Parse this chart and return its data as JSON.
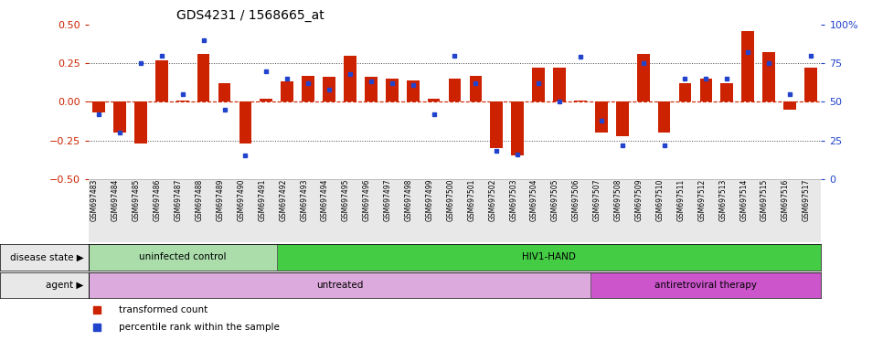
{
  "title": "GDS4231 / 1568665_at",
  "samples": [
    "GSM697483",
    "GSM697484",
    "GSM697485",
    "GSM697486",
    "GSM697487",
    "GSM697488",
    "GSM697489",
    "GSM697490",
    "GSM697491",
    "GSM697492",
    "GSM697493",
    "GSM697494",
    "GSM697495",
    "GSM697496",
    "GSM697497",
    "GSM697498",
    "GSM697499",
    "GSM697500",
    "GSM697501",
    "GSM697502",
    "GSM697503",
    "GSM697504",
    "GSM697505",
    "GSM697506",
    "GSM697507",
    "GSM697508",
    "GSM697509",
    "GSM697510",
    "GSM697511",
    "GSM697512",
    "GSM697513",
    "GSM697514",
    "GSM697515",
    "GSM697516",
    "GSM697517"
  ],
  "bar_values": [
    -0.07,
    -0.2,
    -0.27,
    0.27,
    0.01,
    0.31,
    0.12,
    -0.27,
    0.02,
    0.13,
    0.17,
    0.16,
    0.3,
    0.16,
    0.15,
    0.14,
    0.02,
    0.15,
    0.17,
    -0.3,
    -0.35,
    0.22,
    0.22,
    0.01,
    -0.2,
    -0.22,
    0.31,
    -0.2,
    0.12,
    0.15,
    0.12,
    0.46,
    0.32,
    -0.05,
    0.22
  ],
  "percentile_values": [
    42,
    30,
    75,
    80,
    55,
    90,
    45,
    15,
    70,
    65,
    62,
    58,
    68,
    63,
    62,
    61,
    42,
    80,
    62,
    18,
    16,
    62,
    50,
    79,
    38,
    22,
    75,
    22,
    65,
    65,
    65,
    82,
    75,
    55,
    80
  ],
  "ylim": [
    -0.5,
    0.5
  ],
  "yticks_left": [
    -0.5,
    -0.25,
    0,
    0.25,
    0.5
  ],
  "yticks_right": [
    0,
    25,
    50,
    75,
    100
  ],
  "yticks_right_labels": [
    "0",
    "25",
    "50",
    "75",
    "100%"
  ],
  "bar_color": "#cc2200",
  "dot_color": "#2244cc",
  "hline_0_color": "#cc2200",
  "hline_dotted_color": "#444444",
  "disease_state_groups": [
    {
      "label": "uninfected control",
      "start": 0,
      "end": 8,
      "color": "#aaddaa"
    },
    {
      "label": "HIV1-HAND",
      "start": 9,
      "end": 34,
      "color": "#44cc44"
    }
  ],
  "agent_groups": [
    {
      "label": "untreated",
      "start": 0,
      "end": 23,
      "color": "#ddaadd"
    },
    {
      "label": "antiretroviral therapy",
      "start": 24,
      "end": 34,
      "color": "#cc55cc"
    }
  ],
  "disease_state_label": "disease state",
  "agent_label": "agent",
  "legend_items": [
    {
      "label": "transformed count",
      "color": "#cc2200"
    },
    {
      "label": "percentile rank within the sample",
      "color": "#2244cc"
    }
  ],
  "bg_color": "#e8e8e8",
  "plot_bg_color": "#ffffff"
}
